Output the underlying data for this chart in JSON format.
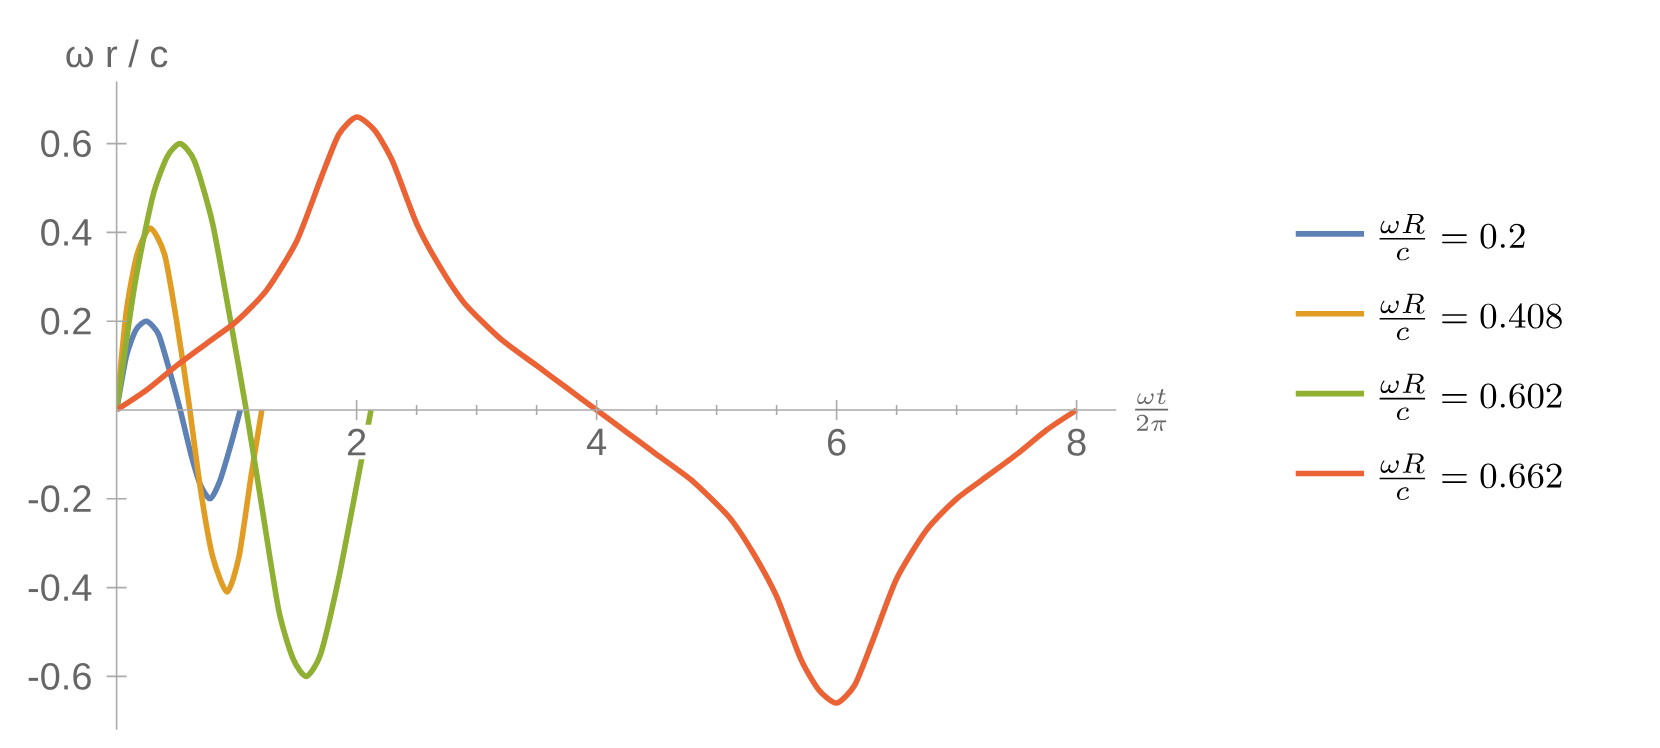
{
  "chart_data": {
    "type": "line",
    "xlabel": "\\frac{\\omega t}{2\\pi}",
    "ylabel": "ω r / c",
    "xlim": [
      0,
      8.33
    ],
    "ylim": [
      -0.72,
      0.74
    ],
    "xticks": [
      2,
      4,
      6,
      8
    ],
    "yticks": [
      -0.6,
      -0.4,
      -0.2,
      0.2,
      0.4,
      0.6
    ],
    "grid": false,
    "legend": "right",
    "marker": "none",
    "line_style": "solid",
    "series": [
      {
        "name": "\\frac{\\omega R}{c} = 0.2",
        "color": "#5e81b5",
        "x": [
          0,
          0.08,
          0.16,
          0.25,
          0.35,
          0.45,
          0.53,
          0.62,
          0.7,
          0.78,
          0.86,
          0.95,
          1.03
        ],
        "values": [
          0,
          0.12,
          0.18,
          0.2,
          0.17,
          0.08,
          0,
          -0.1,
          -0.17,
          -0.2,
          -0.16,
          -0.08,
          0
        ]
      },
      {
        "name": "\\frac{\\omega R}{c} = 0.408",
        "color": "#e19c24",
        "x": [
          0,
          0.08,
          0.17,
          0.28,
          0.4,
          0.5,
          0.6,
          0.7,
          0.8,
          0.92,
          1.02,
          1.12,
          1.21
        ],
        "values": [
          0,
          0.22,
          0.35,
          0.41,
          0.35,
          0.2,
          0.02,
          -0.18,
          -0.33,
          -0.41,
          -0.33,
          -0.15,
          0
        ]
      },
      {
        "name": "\\frac{\\omega R}{c} = 0.602",
        "color": "#8fb032",
        "x": [
          0,
          0.15,
          0.3,
          0.42,
          0.53,
          0.65,
          0.8,
          0.95,
          1.08,
          1.2,
          1.35,
          1.47,
          1.58,
          1.7,
          1.85,
          2.0,
          2.12
        ],
        "values": [
          0,
          0.28,
          0.48,
          0.57,
          0.6,
          0.56,
          0.42,
          0.2,
          0,
          -0.2,
          -0.45,
          -0.56,
          -0.6,
          -0.55,
          -0.38,
          -0.17,
          0
        ]
      },
      {
        "name": "\\frac{\\omega R}{c} = 0.662",
        "color": "#eb6235",
        "x": [
          0,
          0.25,
          0.5,
          0.75,
          1,
          1.25,
          1.5,
          1.7,
          1.85,
          2,
          2.15,
          2.3,
          2.5,
          2.7,
          2.9,
          3.2,
          3.5,
          3.75,
          4,
          4.25,
          4.5,
          4.8,
          5.1,
          5.3,
          5.5,
          5.7,
          5.85,
          6,
          6.15,
          6.3,
          6.5,
          6.75,
          7,
          7.25,
          7.5,
          7.75,
          8
        ],
        "values": [
          0,
          0.045,
          0.1,
          0.15,
          0.2,
          0.27,
          0.38,
          0.52,
          0.62,
          0.66,
          0.63,
          0.56,
          0.42,
          0.32,
          0.24,
          0.16,
          0.1,
          0.05,
          0,
          -0.05,
          -0.1,
          -0.16,
          -0.24,
          -0.32,
          -0.42,
          -0.56,
          -0.63,
          -0.66,
          -0.62,
          -0.52,
          -0.38,
          -0.27,
          -0.2,
          -0.15,
          -0.1,
          -0.045,
          0
        ]
      }
    ]
  }
}
